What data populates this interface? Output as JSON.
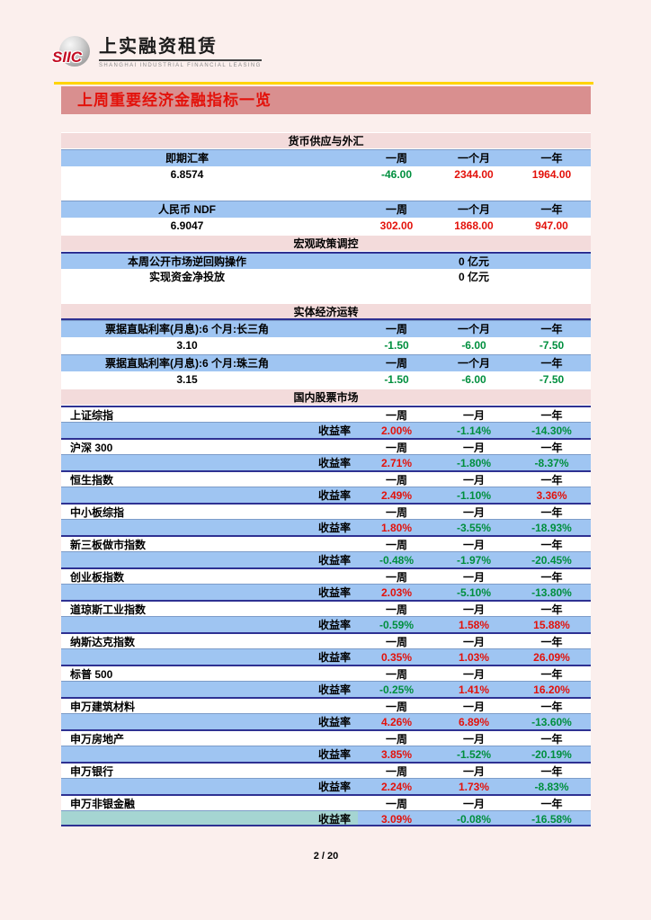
{
  "header": {
    "logo_siic": "SIIC",
    "logo_cn": "上实融资租赁",
    "logo_en": "SHANGHAI INDUSTRIAL FINANCIAL LEASING"
  },
  "banner": {
    "title": "上周重要经济金融指标一览"
  },
  "palette": {
    "page_bg": "#fbefed",
    "banner_bg": "#d98f8f",
    "section_header_bg": "#f3dbdb",
    "blue_row_bg": "#9fc5f2",
    "navy_line": "#2e3192",
    "gold_rule": "#ffd400",
    "positive_red": "#e3120b",
    "negative_green": "#008f3e",
    "teal_cell": "#a5d5d2"
  },
  "money_fx": {
    "section_title": "货币供应与外汇",
    "tables": [
      {
        "label": "即期汇率",
        "cols": [
          "一周",
          "一个月",
          "一年"
        ],
        "current": "6.8574",
        "values": [
          {
            "t": "-46.00",
            "c": "neg"
          },
          {
            "t": "2344.00",
            "c": "pos"
          },
          {
            "t": "1964.00",
            "c": "pos"
          }
        ]
      },
      {
        "label": "人民币 NDF",
        "cols": [
          "一周",
          "一个月",
          "一年"
        ],
        "current": "6.9047",
        "values": [
          {
            "t": "302.00",
            "c": "pos"
          },
          {
            "t": "1868.00",
            "c": "pos"
          },
          {
            "t": "947.00",
            "c": "pos"
          }
        ]
      }
    ]
  },
  "macro_policy": {
    "section_title": "宏观政策调控",
    "rows": [
      {
        "label": "本周公开市场逆回购操作",
        "value": "0 亿元"
      },
      {
        "label": "实现资金净投放",
        "value": "0 亿元"
      }
    ]
  },
  "real_economy": {
    "section_title": "实体经济运转",
    "tables": [
      {
        "label": "票据直贴利率(月息):6 个月:长三角",
        "cols": [
          "一周",
          "一个月",
          "一年"
        ],
        "current": "3.10",
        "values": [
          {
            "t": "-1.50",
            "c": "neg"
          },
          {
            "t": "-6.00",
            "c": "neg"
          },
          {
            "t": "-7.50",
            "c": "neg"
          }
        ]
      },
      {
        "label": "票据直贴利率(月息):6 个月:珠三角",
        "cols": [
          "一周",
          "一个月",
          "一年"
        ],
        "current": "3.15",
        "values": [
          {
            "t": "-1.50",
            "c": "neg"
          },
          {
            "t": "-6.00",
            "c": "neg"
          },
          {
            "t": "-7.50",
            "c": "neg"
          }
        ]
      }
    ]
  },
  "stock_market": {
    "section_title": "国内股票市场",
    "cols": [
      "一周",
      "一月",
      "一年"
    ],
    "metric_label": "收益率",
    "rows": [
      {
        "name": "上证综指",
        "values": [
          {
            "t": "2.00%",
            "c": "pos"
          },
          {
            "t": "-1.14%",
            "c": "neg"
          },
          {
            "t": "-14.30%",
            "c": "neg"
          }
        ]
      },
      {
        "name": "沪深 300",
        "values": [
          {
            "t": "2.71%",
            "c": "pos"
          },
          {
            "t": "-1.80%",
            "c": "neg"
          },
          {
            "t": "-8.37%",
            "c": "neg"
          }
        ]
      },
      {
        "name": "恒生指数",
        "values": [
          {
            "t": "2.49%",
            "c": "pos"
          },
          {
            "t": "-1.10%",
            "c": "neg"
          },
          {
            "t": "3.36%",
            "c": "pos"
          }
        ]
      },
      {
        "name": "中小板综指",
        "values": [
          {
            "t": "1.80%",
            "c": "pos"
          },
          {
            "t": "-3.55%",
            "c": "neg"
          },
          {
            "t": "-18.93%",
            "c": "neg"
          }
        ]
      },
      {
        "name": "新三板做市指数",
        "values": [
          {
            "t": "-0.48%",
            "c": "neg"
          },
          {
            "t": "-1.97%",
            "c": "neg"
          },
          {
            "t": "-20.45%",
            "c": "neg"
          }
        ]
      },
      {
        "name": "创业板指数",
        "values": [
          {
            "t": "2.03%",
            "c": "pos"
          },
          {
            "t": "-5.10%",
            "c": "neg"
          },
          {
            "t": "-13.80%",
            "c": "neg"
          }
        ]
      },
      {
        "name": "道琼斯工业指数",
        "values": [
          {
            "t": "-0.59%",
            "c": "neg"
          },
          {
            "t": "1.58%",
            "c": "pos"
          },
          {
            "t": "15.88%",
            "c": "pos"
          }
        ]
      },
      {
        "name": "纳斯达克指数",
        "values": [
          {
            "t": "0.35%",
            "c": "pos"
          },
          {
            "t": "1.03%",
            "c": "pos"
          },
          {
            "t": "26.09%",
            "c": "pos"
          }
        ]
      },
      {
        "name": "标普 500",
        "values": [
          {
            "t": "-0.25%",
            "c": "neg"
          },
          {
            "t": "1.41%",
            "c": "pos"
          },
          {
            "t": "16.20%",
            "c": "pos"
          }
        ]
      },
      {
        "name": "申万建筑材料",
        "values": [
          {
            "t": "4.26%",
            "c": "pos"
          },
          {
            "t": "6.89%",
            "c": "pos"
          },
          {
            "t": "-13.60%",
            "c": "neg"
          }
        ]
      },
      {
        "name": "申万房地产",
        "values": [
          {
            "t": "3.85%",
            "c": "pos"
          },
          {
            "t": "-1.52%",
            "c": "neg"
          },
          {
            "t": "-20.19%",
            "c": "neg"
          }
        ]
      },
      {
        "name": "申万银行",
        "values": [
          {
            "t": "2.24%",
            "c": "pos"
          },
          {
            "t": "1.73%",
            "c": "pos"
          },
          {
            "t": "-8.83%",
            "c": "neg"
          }
        ]
      },
      {
        "name": "申万非银金融",
        "values": [
          {
            "t": "3.09%",
            "c": "pos"
          },
          {
            "t": "-0.08%",
            "c": "neg"
          },
          {
            "t": "-16.58%",
            "c": "neg"
          }
        ],
        "highlight": true
      }
    ]
  },
  "footer": {
    "page": "2 / 20"
  }
}
